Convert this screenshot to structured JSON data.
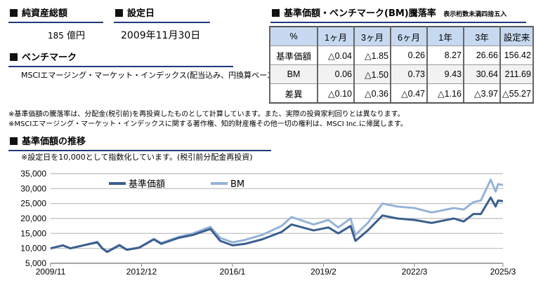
{
  "net_assets": {
    "title": "純資産総額",
    "value": "185",
    "unit": "億円"
  },
  "inception": {
    "title": "設定日",
    "value": "2009年11月30日"
  },
  "benchmark": {
    "title": "ベンチマーク",
    "value": "MSCIエマージング・マーケット・インデックス(配当込み、円換算ベース)"
  },
  "returns": {
    "title": "基準価額・ベンチマーク(BM)騰落率",
    "note": "表示桁数未満四捨五入",
    "headers": [
      "%",
      "1ヶ月",
      "3ヶ月",
      "6ヶ月",
      "1年",
      "3年",
      "設定来"
    ],
    "rows": [
      {
        "label": "基準価額",
        "values": [
          "△0.04",
          "△1.85",
          "0.26",
          "8.27",
          "26.66",
          "156.42"
        ]
      },
      {
        "label": "BM",
        "values": [
          "0.06",
          "△1.50",
          "0.73",
          "9.43",
          "30.64",
          "211.69"
        ]
      },
      {
        "label": "差異",
        "values": [
          "△0.10",
          "△0.36",
          "△0.47",
          "△1.16",
          "△3.97",
          "△55.27"
        ]
      }
    ]
  },
  "notes": [
    "※基準価額の騰落率は、分配金(税引前)を再投資したものとして計算しています。また、実際の投資家利回りとは異なります。",
    "※MSCIエマージング・マーケット・インデックスに関する著作権、知的財産権その他一切の権利は、MSCI Inc.に帰属します。"
  ],
  "chart_section": {
    "title": "基準価額の推移",
    "subtitle": "※設定日を10,000として指数化しています。(税引前分配金再投資)"
  },
  "chart_data": {
    "type": "line",
    "ylim": [
      5000,
      35000
    ],
    "yticks": [
      "35,000",
      "30,000",
      "25,000",
      "20,000",
      "15,000",
      "10,000",
      "5,000"
    ],
    "xticks": [
      "2009/11",
      "2012/12",
      "2016/1",
      "2019/2",
      "2022/3",
      "2025/3"
    ],
    "grid": true,
    "legend": "top-left",
    "x": [
      "2009/11",
      "2010/4",
      "2010/7",
      "2011/3",
      "2011/6",
      "2011/8",
      "2011/10",
      "2012/3",
      "2012/6",
      "2012/11",
      "2013/5",
      "2013/8",
      "2014/3",
      "2014/9",
      "2015/4",
      "2015/8",
      "2016/1",
      "2016/6",
      "2017/1",
      "2017/9",
      "2018/1",
      "2018/10",
      "2019/4",
      "2019/8",
      "2020/1",
      "2020/3",
      "2020/8",
      "2021/2",
      "2021/8",
      "2022/3",
      "2022/10",
      "2023/7",
      "2023/11",
      "2024/3",
      "2024/6",
      "2024/10",
      "2024/12",
      "2025/1",
      "2025/3"
    ],
    "series": [
      {
        "name": "基準価額",
        "color": "#3a5f8f",
        "values": [
          10000,
          11000,
          10000,
          11500,
          12000,
          10000,
          8800,
          11000,
          9500,
          10200,
          13000,
          11500,
          13500,
          14500,
          16500,
          12500,
          11000,
          11500,
          13000,
          15500,
          18000,
          16000,
          17000,
          15000,
          17500,
          12500,
          16000,
          21000,
          20000,
          19500,
          18500,
          20000,
          19000,
          21500,
          21500,
          27000,
          24000,
          26000,
          25800
        ]
      },
      {
        "name": "BM",
        "color": "#95b3d7",
        "values": [
          10000,
          11000,
          10000,
          11500,
          12200,
          10100,
          9000,
          11200,
          9600,
          10300,
          13200,
          11800,
          13800,
          15000,
          17200,
          13500,
          12000,
          12800,
          14500,
          17500,
          20500,
          18000,
          19500,
          17000,
          20000,
          14500,
          18500,
          25000,
          24000,
          23500,
          22000,
          23500,
          23000,
          25500,
          26000,
          33000,
          29000,
          31500,
          31200
        ]
      }
    ]
  }
}
